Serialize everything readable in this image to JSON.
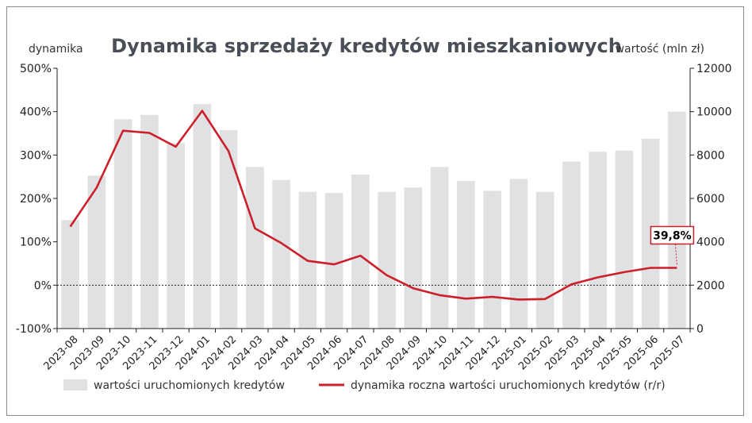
{
  "chart_data": {
    "type": "bar",
    "title": "Dynamika sprzedaży kredytów mieszkaniowych",
    "left_axis_label": "dynamika",
    "right_axis_label": "wartość (mln zł)",
    "left_ticks": [
      "500%",
      "400%",
      "300%",
      "200%",
      "100%",
      "0%",
      "-100%"
    ],
    "left_tick_values": [
      500,
      400,
      300,
      200,
      100,
      0,
      -100
    ],
    "right_ticks": [
      "12000",
      "10000",
      "8000",
      "6000",
      "4000",
      "2000",
      "0"
    ],
    "right_tick_values": [
      12000,
      10000,
      8000,
      6000,
      4000,
      2000,
      0
    ],
    "ylim_left": [
      -100,
      500
    ],
    "ylim_right": [
      0,
      12000
    ],
    "zero_line": "dashed",
    "categories": [
      "2023-08",
      "2023-09",
      "2023-10",
      "2023-11",
      "2023-12",
      "2024-01",
      "2024-02",
      "2024-03",
      "2024-04",
      "2024-05",
      "2024-06",
      "2024-07",
      "2024-08",
      "2024-09",
      "2024-10",
      "2024-11",
      "2024-12",
      "2025-01",
      "2025-02",
      "2025-03",
      "2025-04",
      "2025-05",
      "2025-06",
      "2025-07"
    ],
    "series": [
      {
        "name": "wartości uruchomionych kredytów",
        "kind": "bar",
        "axis": "right",
        "color": "#e0e1e2",
        "values": [
          5000,
          7050,
          9650,
          9850,
          8550,
          10350,
          9150,
          7450,
          6850,
          6300,
          6250,
          7100,
          6300,
          6500,
          7450,
          6800,
          6350,
          6900,
          6300,
          7700,
          8150,
          8200,
          8750,
          10000
        ]
      },
      {
        "name": "dynamika roczna wartości uruchomionych kredytów (r/r)",
        "kind": "line",
        "axis": "left",
        "color": "#cc1f2a",
        "values": [
          135,
          225,
          356,
          351,
          319,
          402,
          309,
          131,
          97,
          56,
          48,
          68,
          23,
          -7,
          -23,
          -31,
          -27,
          -33,
          -32,
          2,
          18,
          30,
          40,
          40
        ]
      }
    ],
    "annotation": {
      "text": "39,8%",
      "index": 23
    }
  }
}
